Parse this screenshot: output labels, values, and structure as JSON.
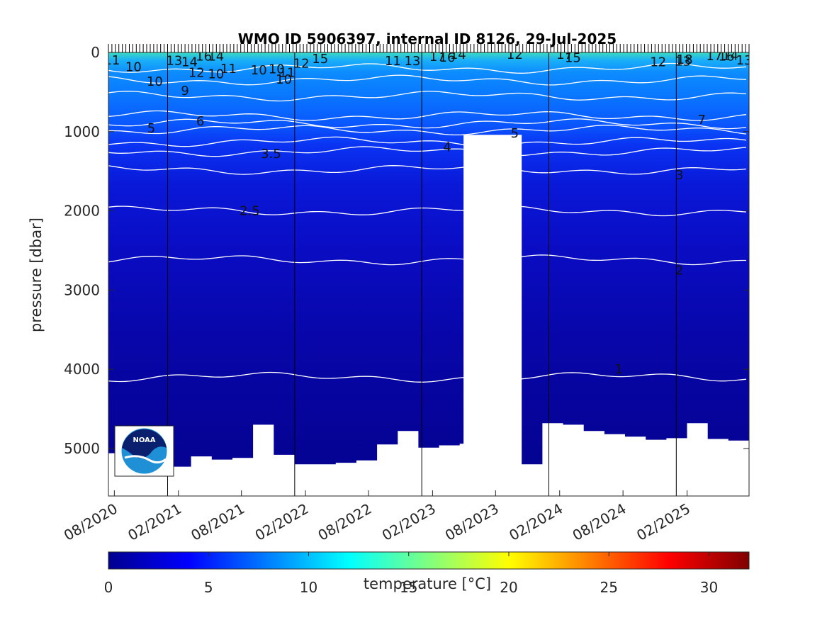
{
  "chart_data": {
    "type": "heatmap",
    "title": "WMO ID 5906397, internal ID 8126, 29-Jul-2025",
    "xlabel": "",
    "ylabel": "pressure [dbar]",
    "ylim": [
      5600,
      0
    ],
    "xlim": [
      "2020-07-15",
      "2025-07-29"
    ],
    "x_ticks": [
      "08/2020",
      "02/2021",
      "08/2021",
      "02/2022",
      "08/2022",
      "02/2023",
      "08/2023",
      "02/2024",
      "08/2024",
      "02/2025"
    ],
    "y_ticks": [
      0,
      1000,
      2000,
      3000,
      4000,
      5000
    ],
    "year_lines": [
      "2021-01-01",
      "2022-01-01",
      "2023-01-01",
      "2024-01-01",
      "2025-01-01"
    ],
    "colorbar": {
      "label": "temperature [°C]",
      "range": [
        0,
        32
      ],
      "ticks": [
        0,
        5,
        10,
        15,
        20,
        25,
        30
      ],
      "colormap": "jet"
    },
    "isotherm_depths": [
      {
        "temperature": 1,
        "pressure": 4100
      },
      {
        "temperature": 2,
        "pressure": 2620
      },
      {
        "temperature": 2.5,
        "pressure": 2000
      },
      {
        "temperature": 3,
        "pressure": 1480
      },
      {
        "temperature": 3.5,
        "pressure": 1250
      },
      {
        "temperature": 4,
        "pressure": 1130
      },
      {
        "temperature": 5,
        "pressure": 980
      },
      {
        "temperature": 6,
        "pressure": 900
      },
      {
        "temperature": 7,
        "pressure": 800
      },
      {
        "temperature": 9,
        "pressure": 550
      },
      {
        "temperature": 10,
        "pressure": 350
      },
      {
        "temperature": 12,
        "pressure": 200
      }
    ],
    "contour_labels": [
      {
        "text": "11",
        "date": "2020-07-25",
        "pressure": 90
      },
      {
        "text": "10",
        "date": "2020-09-25",
        "pressure": 175
      },
      {
        "text": "10",
        "date": "2020-11-25",
        "pressure": 360
      },
      {
        "text": "5",
        "date": "2020-11-15",
        "pressure": 950
      },
      {
        "text": "13",
        "date": "2021-01-20",
        "pressure": 95
      },
      {
        "text": "14",
        "date": "2021-03-05",
        "pressure": 110
      },
      {
        "text": "16",
        "date": "2021-04-15",
        "pressure": 40
      },
      {
        "text": "14",
        "date": "2021-05-20",
        "pressure": 40
      },
      {
        "text": "12",
        "date": "2021-03-25",
        "pressure": 245
      },
      {
        "text": "10",
        "date": "2021-05-20",
        "pressure": 265
      },
      {
        "text": "11",
        "date": "2021-06-25",
        "pressure": 195
      },
      {
        "text": "9",
        "date": "2021-02-20",
        "pressure": 475
      },
      {
        "text": "6",
        "date": "2021-04-05",
        "pressure": 860
      },
      {
        "text": "10",
        "date": "2021-09-20",
        "pressure": 215
      },
      {
        "text": "10",
        "date": "2021-11-10",
        "pressure": 200
      },
      {
        "text": "11",
        "date": "2021-12-10",
        "pressure": 245
      },
      {
        "text": "10",
        "date": "2021-12-01",
        "pressure": 330
      },
      {
        "text": "12",
        "date": "2022-01-20",
        "pressure": 130
      },
      {
        "text": "15",
        "date": "2022-03-15",
        "pressure": 70
      },
      {
        "text": "3.5",
        "date": "2021-10-25",
        "pressure": 1270
      },
      {
        "text": "2.5",
        "date": "2021-08-25",
        "pressure": 1990
      },
      {
        "text": "11",
        "date": "2022-10-10",
        "pressure": 100
      },
      {
        "text": "13",
        "date": "2022-12-05",
        "pressure": 100
      },
      {
        "text": "17",
        "date": "2023-02-15",
        "pressure": 45
      },
      {
        "text": "16",
        "date": "2023-03-15",
        "pressure": 55
      },
      {
        "text": "14",
        "date": "2023-04-15",
        "pressure": 20
      },
      {
        "text": "4",
        "date": "2023-03-15",
        "pressure": 1185
      },
      {
        "text": "12",
        "date": "2023-09-25",
        "pressure": 20
      },
      {
        "text": "5",
        "date": "2023-09-25",
        "pressure": 1010
      },
      {
        "text": "17",
        "date": "2024-02-15",
        "pressure": 20
      },
      {
        "text": "15",
        "date": "2024-03-10",
        "pressure": 60
      },
      {
        "text": "12",
        "date": "2024-11-10",
        "pressure": 110
      },
      {
        "text": "18",
        "date": "2025-01-25",
        "pressure": 80
      },
      {
        "text": "13",
        "date": "2025-01-20",
        "pressure": 105
      },
      {
        "text": "17",
        "date": "2025-04-20",
        "pressure": 35
      },
      {
        "text": "16",
        "date": "2025-05-25",
        "pressure": 40
      },
      {
        "text": "14",
        "date": "2025-06-05",
        "pressure": 30
      },
      {
        "text": "13",
        "date": "2025-07-15",
        "pressure": 90
      },
      {
        "text": "7",
        "date": "2025-03-15",
        "pressure": 840
      },
      {
        "text": "3",
        "date": "2025-01-10",
        "pressure": 1540
      },
      {
        "text": "2",
        "date": "2025-01-10",
        "pressure": 2740
      },
      {
        "text": "1",
        "date": "2024-07-20",
        "pressure": 3990
      }
    ],
    "data_gap": {
      "start": "2023-05-01",
      "end": "2023-10-15"
    },
    "bottom_pressure_samples": [
      5060,
      5180,
      5200,
      5230,
      5100,
      5140,
      5120,
      4700,
      5080,
      5200,
      5200,
      5180,
      5150,
      4950,
      4780,
      4990,
      4960,
      4940,
      4950,
      5200,
      5200,
      4680,
      4700,
      4780,
      4820,
      4850,
      4890,
      4870,
      4680,
      4880,
      4900
    ],
    "logo": "NOAA"
  }
}
